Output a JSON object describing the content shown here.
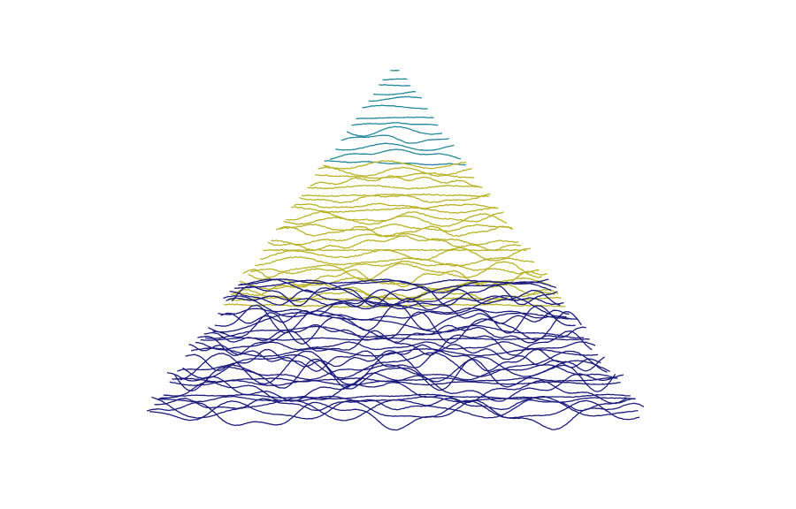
{
  "bands": [
    {
      "color": "#23889a"
    },
    {
      "color": "#b9b225"
    },
    {
      "color": "#1b1b7c"
    }
  ]
}
